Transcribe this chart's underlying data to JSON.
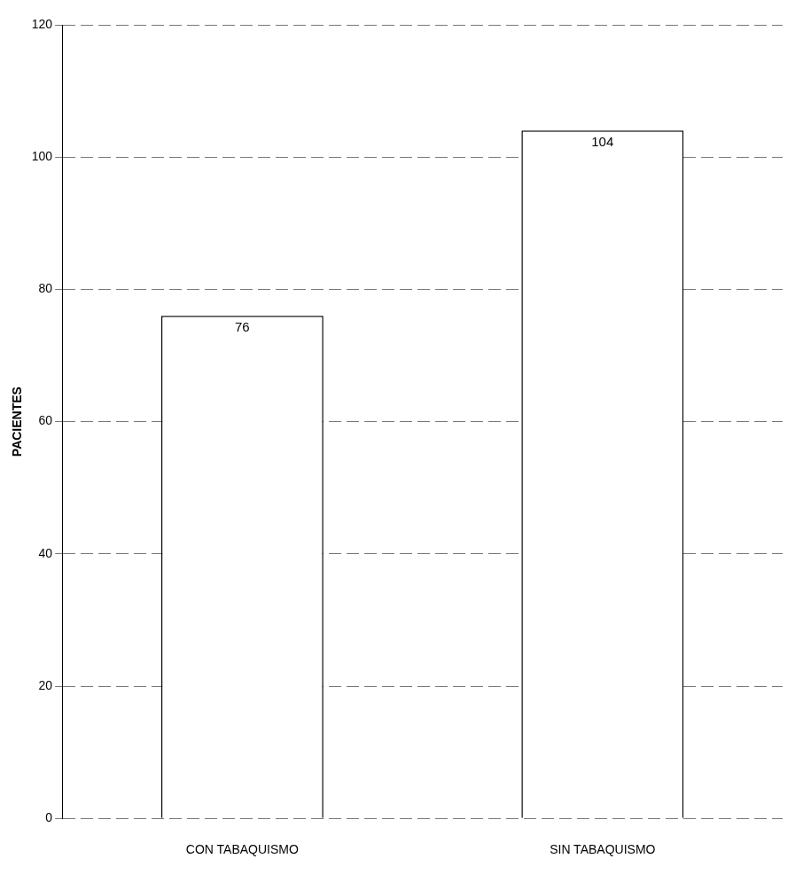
{
  "chart_data": {
    "type": "bar",
    "ylabel": "PACIENTES",
    "categories": [
      "CON TABAQUISMO",
      "SIN TABAQUISMO"
    ],
    "values": [
      76,
      104
    ],
    "color": "#ffffff",
    "ylim": [
      0,
      120
    ],
    "yticks": [
      0,
      20,
      40,
      60,
      80,
      100,
      120
    ],
    "grid": "y",
    "data_labels": true
  }
}
